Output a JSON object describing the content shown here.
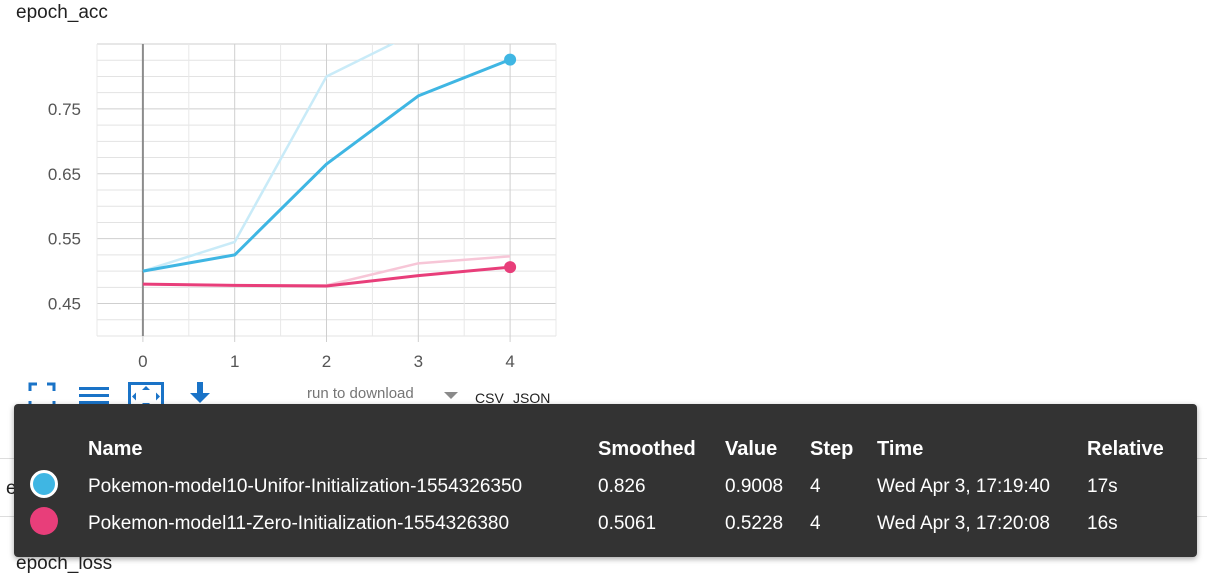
{
  "card": {
    "title": "epoch_acc",
    "second_title_fragment": "epoch_loss",
    "next_title": "epoch_loss"
  },
  "toolbar": {
    "download_placeholder": "run to download",
    "csv_label": "CSV",
    "json_label": "JSON"
  },
  "chart_data": {
    "type": "line",
    "title": "epoch_acc",
    "xlabel": "",
    "ylabel": "",
    "x": [
      0,
      1,
      2,
      3,
      4
    ],
    "x_ticks": [
      "0",
      "1",
      "2",
      "3",
      "4"
    ],
    "y_ticks": [
      "0.45",
      "0.55",
      "0.65",
      "0.75"
    ],
    "xlim": [
      -0.5,
      4.5
    ],
    "ylim": [
      0.4,
      0.85
    ],
    "grid": true,
    "series": [
      {
        "name": "Pokemon-model10-Unifor-Initialization-1554326350",
        "color": "#3fb6e3",
        "raw_color": "#c9ebf8",
        "smoothed": [
          0.5,
          0.525,
          0.665,
          0.77,
          0.826
        ],
        "raw": [
          0.5,
          0.545,
          0.8,
          0.87,
          0.9008
        ]
      },
      {
        "name": "Pokemon-model11-Zero-Initialization-1554326380",
        "color": "#e83e7a",
        "raw_color": "#f7c6d7",
        "smoothed": [
          0.48,
          0.478,
          0.477,
          0.493,
          0.5061
        ],
        "raw": [
          0.48,
          0.478,
          0.478,
          0.512,
          0.5228
        ]
      }
    ]
  },
  "tooltip": {
    "headers": {
      "name": "Name",
      "smoothed": "Smoothed",
      "value": "Value",
      "step": "Step",
      "time": "Time",
      "relative": "Relative"
    },
    "rows": [
      {
        "color": "#3fb6e3",
        "name": "Pokemon-model10-Unifor-Initialization-1554326350",
        "smoothed": "0.826",
        "value": "0.9008",
        "step": "4",
        "time": "Wed Apr 3, 17:19:40",
        "relative": "17s"
      },
      {
        "color": "#e83e7a",
        "name": "Pokemon-model11-Zero-Initialization-1554326380",
        "smoothed": "0.5061",
        "value": "0.5228",
        "step": "4",
        "time": "Wed Apr 3, 17:20:08",
        "relative": "16s"
      }
    ]
  },
  "icons": {
    "fit_domain": "fit-to-data-icon",
    "log_scale": "log-scale-icon",
    "expand": "expand-icon",
    "download": "download-icon"
  }
}
